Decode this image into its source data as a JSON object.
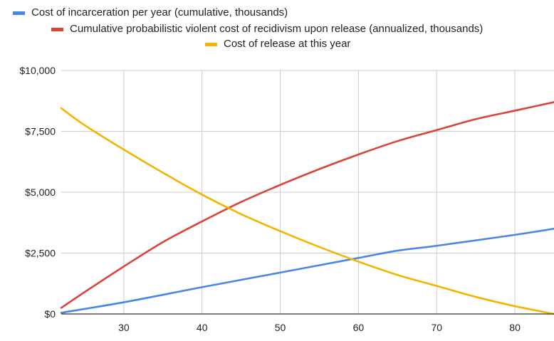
{
  "chart_data": {
    "type": "line",
    "title": "",
    "xlabel": "",
    "ylabel": "",
    "xlim": [
      22,
      85
    ],
    "ylim": [
      0,
      10000
    ],
    "grid": true,
    "legend_position": "top",
    "x_ticks": [
      30,
      40,
      50,
      60,
      70,
      80
    ],
    "x_tick_labels": [
      "30",
      "40",
      "50",
      "60",
      "70",
      "80"
    ],
    "y_ticks": [
      0,
      2500,
      5000,
      7500,
      10000
    ],
    "y_tick_labels": [
      "$0",
      "$2,500",
      "$5,000",
      "$7,500",
      "$10,000"
    ],
    "series": [
      {
        "name": "Cost of incarceration per year (cumulative, thousands)",
        "color": "#4a86e8",
        "x": [
          22,
          30,
          40,
          50,
          60,
          65,
          70,
          80,
          85
        ],
        "y": [
          50,
          480,
          1100,
          1700,
          2300,
          2600,
          2800,
          3250,
          3500
        ]
      },
      {
        "name": "Cumulative probabilistic violent cost of recidivism upon release (annualized, thousands)",
        "color": "#db4437",
        "x": [
          22,
          25,
          30,
          35,
          40,
          45,
          50,
          55,
          60,
          65,
          70,
          75,
          80,
          85
        ],
        "y": [
          250,
          900,
          1950,
          2950,
          3800,
          4600,
          5300,
          5950,
          6550,
          7100,
          7550,
          8000,
          8350,
          8700
        ]
      },
      {
        "name": "Cost of release at this year",
        "color": "#f4b400",
        "x": [
          22,
          25,
          30,
          35,
          40,
          45,
          50,
          55,
          60,
          65,
          70,
          75,
          80,
          85
        ],
        "y": [
          8450,
          7750,
          6750,
          5800,
          4900,
          4100,
          3400,
          2750,
          2150,
          1600,
          1150,
          700,
          320,
          0
        ]
      }
    ]
  }
}
